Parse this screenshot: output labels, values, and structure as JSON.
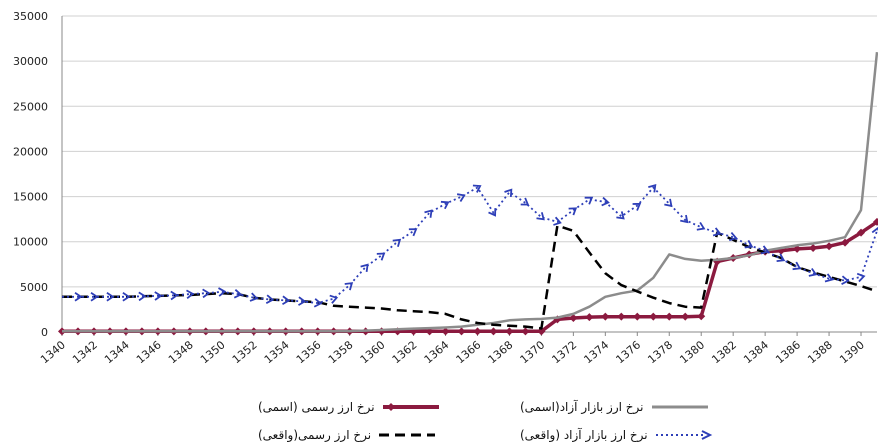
{
  "chart_data": {
    "type": "line",
    "title": "",
    "xlabel": "",
    "ylabel": "",
    "ylim": [
      0,
      35000
    ],
    "yticks": [
      0,
      5000,
      10000,
      15000,
      20000,
      25000,
      30000,
      35000
    ],
    "xlim": [
      1340,
      1391
    ],
    "xticks": [
      1340,
      1342,
      1344,
      1346,
      1348,
      1350,
      1352,
      1354,
      1356,
      1358,
      1360,
      1362,
      1364,
      1366,
      1368,
      1370,
      1372,
      1374,
      1376,
      1378,
      1380,
      1382,
      1384,
      1386,
      1388,
      1390
    ],
    "grid": "horizontal",
    "legend_position": "bottom",
    "x": [
      1340,
      1341,
      1342,
      1343,
      1344,
      1345,
      1346,
      1347,
      1348,
      1349,
      1350,
      1351,
      1352,
      1353,
      1354,
      1355,
      1356,
      1357,
      1358,
      1359,
      1360,
      1361,
      1362,
      1363,
      1364,
      1365,
      1366,
      1367,
      1368,
      1369,
      1370,
      1371,
      1372,
      1373,
      1374,
      1375,
      1376,
      1377,
      1378,
      1379,
      1380,
      1381,
      1382,
      1383,
      1384,
      1385,
      1386,
      1387,
      1388,
      1389,
      1390,
      1391
    ],
    "series": [
      {
        "name": "نرخ ارز رسمی (اسمی)",
        "color": "#8b1a3f",
        "style": "solid-diamond",
        "values": [
          75,
          75,
          75,
          75,
          75,
          75,
          75,
          75,
          75,
          75,
          75,
          75,
          75,
          75,
          75,
          75,
          75,
          75,
          75,
          75,
          75,
          75,
          75,
          75,
          75,
          75,
          75,
          75,
          75,
          75,
          75,
          1400,
          1550,
          1650,
          1700,
          1700,
          1700,
          1700,
          1700,
          1700,
          1750,
          7800,
          8200,
          8600,
          8900,
          9000,
          9200,
          9300,
          9500,
          9900,
          11000,
          12200
        ]
      },
      {
        "name": "نرخ ارز بازار آزاد(اسمی)",
        "color": "#8c8c8c",
        "style": "solid",
        "values": [
          75,
          75,
          75,
          75,
          75,
          75,
          75,
          75,
          75,
          75,
          75,
          75,
          75,
          75,
          75,
          75,
          75,
          80,
          100,
          150,
          220,
          300,
          380,
          430,
          500,
          600,
          800,
          1000,
          1300,
          1400,
          1450,
          1600,
          2000,
          2800,
          3900,
          4300,
          4600,
          6000,
          8600,
          8100,
          7900,
          8000,
          8200,
          8500,
          9000,
          9300,
          9600,
          9800,
          10100,
          10500,
          13500,
          31000
        ]
      },
      {
        "name": "نرخ ارز رسمی(واقعی)",
        "color": "#000000",
        "style": "dashed",
        "values": [
          3900,
          3900,
          3900,
          3900,
          3900,
          3950,
          4000,
          4050,
          4100,
          4200,
          4300,
          4200,
          3800,
          3600,
          3500,
          3400,
          3300,
          2900,
          2800,
          2700,
          2600,
          2400,
          2300,
          2200,
          2000,
          1400,
          1000,
          800,
          700,
          600,
          400,
          11800,
          11200,
          8800,
          6500,
          5200,
          4500,
          3800,
          3200,
          2800,
          2700,
          11000,
          10200,
          9400,
          8800,
          8200,
          7200,
          6600,
          6100,
          5600,
          5100,
          4500
        ]
      },
      {
        "name": "نرخ ارز بازار آزاد (واقعی)",
        "color": "#2e3fb8",
        "style": "dotted-arrow",
        "values": [
          3900,
          3900,
          3900,
          3900,
          3900,
          3950,
          4000,
          4050,
          4200,
          4300,
          4450,
          4200,
          3800,
          3600,
          3500,
          3400,
          3200,
          3700,
          5200,
          7200,
          8500,
          10000,
          11200,
          13200,
          14200,
          15000,
          16000,
          13200,
          15500,
          14300,
          12700,
          12200,
          13500,
          14700,
          14400,
          12800,
          14000,
          16000,
          14200,
          12400,
          11600,
          11000,
          10500,
          9600,
          9000,
          8100,
          7200,
          6500,
          5900,
          5700,
          6100,
          11200
        ]
      }
    ]
  }
}
